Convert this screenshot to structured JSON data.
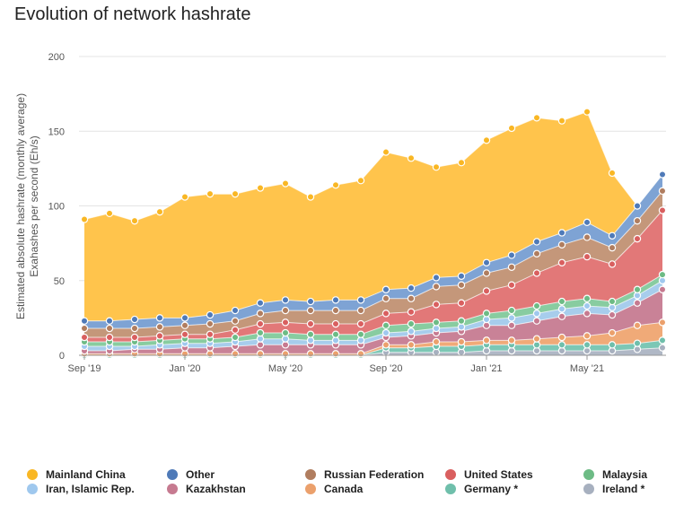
{
  "chart_data": {
    "type": "area",
    "stacked": true,
    "title": "Evolution of network hashrate",
    "ylabel_line1": "Estimated absolute hashrate (monthly average)",
    "ylabel_line2": "Exahashes per second (Eh/s)",
    "ylim": [
      0,
      200
    ],
    "yticks": [
      "0",
      "50",
      "100",
      "150",
      "200"
    ],
    "xtick_labels": [
      {
        "label": "Sep '19",
        "index": 0
      },
      {
        "label": "Jan '20",
        "index": 4
      },
      {
        "label": "May '20",
        "index": 8
      },
      {
        "label": "Sep '20",
        "index": 12
      },
      {
        "label": "Jan '21",
        "index": 16
      },
      {
        "label": "May '21",
        "index": 20
      }
    ],
    "x": [
      "Sep 2019",
      "Oct 2019",
      "Nov 2019",
      "Dec 2019",
      "Jan 2020",
      "Feb 2020",
      "Mar 2020",
      "Apr 2020",
      "May 2020",
      "Jun 2020",
      "Jul 2020",
      "Aug 2020",
      "Sep 2020",
      "Oct 2020",
      "Nov 2020",
      "Dec 2020",
      "Jan 2021",
      "Feb 2021",
      "Mar 2021",
      "Apr 2021",
      "May 2021",
      "Jun 2021",
      "Jul 2021",
      "Aug 2021"
    ],
    "grid": "horizontal",
    "legend_position": "bottom",
    "series": [
      {
        "name": "Ireland *",
        "color": "#b0b8c6",
        "values": [
          0,
          0,
          0,
          0,
          0,
          0,
          0,
          0,
          0,
          0,
          0,
          0,
          2,
          2,
          2,
          2,
          3,
          3,
          3,
          3,
          3,
          3,
          4,
          5
        ]
      },
      {
        "name": "Germany *",
        "color": "#7cc7b5",
        "values": [
          0,
          0,
          0,
          0,
          0,
          0,
          0,
          0,
          0,
          0,
          0,
          0,
          3,
          3,
          4,
          4,
          4,
          4,
          4,
          4,
          4,
          4,
          4,
          5
        ]
      },
      {
        "name": "Canada",
        "color": "#f0aa78",
        "values": [
          1,
          1,
          1,
          1,
          1,
          1,
          1,
          1,
          1,
          1,
          1,
          1,
          2,
          2,
          3,
          3,
          3,
          3,
          4,
          5,
          6,
          8,
          12,
          12
        ]
      },
      {
        "name": "Kazakhstan",
        "color": "#c98297",
        "values": [
          2,
          2,
          3,
          3,
          4,
          4,
          5,
          6,
          6,
          6,
          6,
          6,
          5,
          6,
          6,
          7,
          10,
          10,
          12,
          14,
          15,
          12,
          15,
          22
        ]
      },
      {
        "name": "Iran, Islamic Rep.",
        "color": "#a7cdec",
        "values": [
          3,
          3,
          2,
          3,
          3,
          3,
          3,
          4,
          4,
          3,
          3,
          3,
          3,
          3,
          3,
          3,
          4,
          5,
          5,
          5,
          5,
          5,
          5,
          6
        ]
      },
      {
        "name": "Malaysia",
        "color": "#88cca0",
        "values": [
          3,
          3,
          3,
          3,
          3,
          3,
          3,
          4,
          4,
          4,
          4,
          4,
          5,
          5,
          4,
          4,
          4,
          5,
          5,
          5,
          5,
          4,
          4,
          4
        ]
      },
      {
        "name": "United States",
        "color": "#e27878",
        "values": [
          3,
          3,
          3,
          3,
          3,
          3,
          5,
          6,
          7,
          7,
          7,
          7,
          8,
          8,
          12,
          12,
          15,
          17,
          22,
          26,
          28,
          25,
          34,
          43
        ]
      },
      {
        "name": "Russian Federation",
        "color": "#c4977a",
        "values": [
          6,
          6,
          6,
          6,
          6,
          7,
          6,
          7,
          8,
          9,
          9,
          9,
          10,
          9,
          12,
          12,
          12,
          12,
          13,
          12,
          13,
          11,
          12,
          13
        ]
      },
      {
        "name": "Other",
        "color": "#7ea3d4",
        "values": [
          5,
          5,
          6,
          6,
          5,
          6,
          7,
          7,
          7,
          6,
          7,
          7,
          6,
          7,
          6,
          6,
          7,
          8,
          8,
          8,
          10,
          8,
          10,
          11
        ]
      },
      {
        "name": "Mainland China",
        "color": "#ffc44c",
        "values": [
          68,
          72,
          66,
          71,
          81,
          81,
          78,
          77,
          78,
          70,
          77,
          80,
          92,
          87,
          74,
          76,
          82,
          85,
          83,
          75,
          74,
          42,
          0,
          0
        ]
      }
    ]
  },
  "legend": [
    {
      "name": "Mainland China",
      "color": "#f9b724"
    },
    {
      "name": "Other",
      "color": "#4f7ab8"
    },
    {
      "name": "Russian Federation",
      "color": "#b07d5f"
    },
    {
      "name": "United States",
      "color": "#d95f5f"
    },
    {
      "name": "Malaysia",
      "color": "#6dbb85"
    },
    {
      "name": "Iran, Islamic Rep.",
      "color": "#9fc8ee"
    },
    {
      "name": "Kazakhstan",
      "color": "#c67a90"
    },
    {
      "name": "Canada",
      "color": "#eba06c"
    },
    {
      "name": "Germany *",
      "color": "#6fbfab"
    },
    {
      "name": "Ireland *",
      "color": "#a7b0bf"
    }
  ]
}
